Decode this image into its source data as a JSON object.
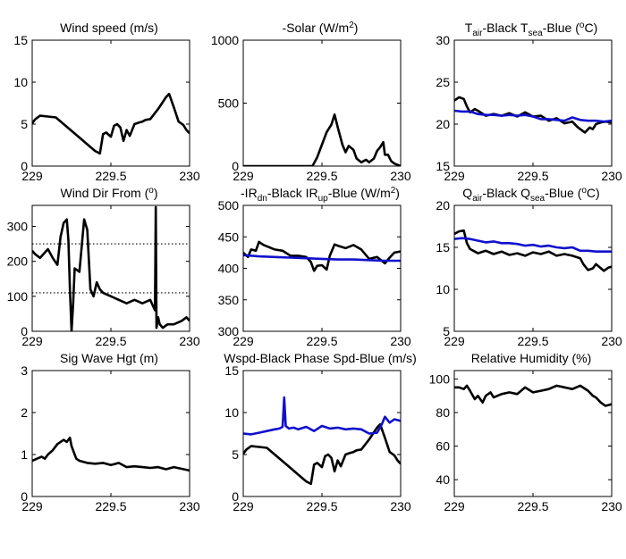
{
  "colors": {
    "black_series": "#000000",
    "blue_series": "#1010cc"
  },
  "chart_data": [
    {
      "type": "line",
      "title": "Wind speed (m/s)",
      "xlim": [
        229,
        230
      ],
      "ylim": [
        0,
        15
      ],
      "xticks": [
        229,
        229.5,
        230
      ],
      "yticks": [
        0,
        5,
        10,
        15
      ],
      "xtick_labels": [
        "229",
        "229.5",
        "230"
      ],
      "ytick_labels": [
        "0",
        "5",
        "10",
        "15"
      ],
      "series": [
        {
          "color": "black",
          "x": [
            229,
            229.02,
            229.05,
            229.1,
            229.15,
            229.2,
            229.25,
            229.3,
            229.35,
            229.4,
            229.43,
            229.45,
            229.47,
            229.5,
            229.52,
            229.54,
            229.56,
            229.58,
            229.6,
            229.62,
            229.65,
            229.68,
            229.7,
            229.72,
            229.75,
            229.8,
            229.85,
            229.87,
            229.9,
            229.93,
            229.96,
            229.98,
            230
          ],
          "y": [
            5.1,
            5.6,
            6.0,
            5.9,
            5.8,
            5.0,
            4.2,
            3.4,
            2.6,
            1.8,
            1.5,
            3.8,
            4.0,
            3.5,
            4.8,
            5.0,
            4.6,
            3.0,
            4.3,
            3.6,
            5.0,
            5.2,
            5.3,
            5.5,
            5.6,
            6.8,
            8.2,
            8.6,
            7.0,
            5.3,
            4.9,
            4.3,
            3.9
          ]
        }
      ]
    },
    {
      "type": "line",
      "title": "-Solar (W/m2)",
      "xlim": [
        229,
        230
      ],
      "ylim": [
        0,
        1000
      ],
      "xticks": [
        229,
        229.5,
        230
      ],
      "yticks": [
        0,
        500,
        1000
      ],
      "xtick_labels": [
        "229",
        "229.5",
        "230"
      ],
      "ytick_labels": [
        "0",
        "500",
        "1000"
      ],
      "series": [
        {
          "color": "black",
          "x": [
            229,
            229.44,
            229.47,
            229.5,
            229.53,
            229.56,
            229.58,
            229.6,
            229.63,
            229.65,
            229.67,
            229.7,
            229.72,
            229.75,
            229.78,
            229.8,
            229.83,
            229.85,
            229.87,
            229.89,
            229.9,
            229.92,
            229.94,
            229.96,
            229.98,
            230
          ],
          "y": [
            0,
            0,
            70,
            170,
            270,
            330,
            410,
            310,
            170,
            110,
            160,
            130,
            60,
            30,
            50,
            30,
            60,
            120,
            150,
            190,
            90,
            90,
            40,
            20,
            10,
            0
          ]
        }
      ]
    },
    {
      "type": "line",
      "title": "Tair-Black  Tsea-Blue (oC)",
      "xlim": [
        229,
        230
      ],
      "ylim": [
        15,
        30
      ],
      "xticks": [
        229,
        229.5,
        230
      ],
      "yticks": [
        15,
        20,
        25,
        30
      ],
      "xtick_labels": [
        "229",
        "229.5",
        "230"
      ],
      "ytick_labels": [
        "15",
        "20",
        "25",
        "30"
      ],
      "series": [
        {
          "color": "black",
          "x": [
            229,
            229.03,
            229.06,
            229.08,
            229.1,
            229.13,
            229.15,
            229.2,
            229.25,
            229.3,
            229.35,
            229.4,
            229.45,
            229.5,
            229.55,
            229.6,
            229.65,
            229.7,
            229.75,
            229.78,
            229.8,
            229.83,
            229.86,
            229.88,
            229.9,
            229.93,
            229.96,
            230
          ],
          "y": [
            22.8,
            23.2,
            23.0,
            22.1,
            21.4,
            21.8,
            21.6,
            21.0,
            21.2,
            21.0,
            21.3,
            20.9,
            21.4,
            20.9,
            21.0,
            20.4,
            20.7,
            20.1,
            20.3,
            19.7,
            19.4,
            19.0,
            19.6,
            19.4,
            20.0,
            20.2,
            20.3,
            20.2
          ]
        },
        {
          "color": "blue",
          "x": [
            229,
            229.05,
            229.1,
            229.15,
            229.2,
            229.25,
            229.3,
            229.35,
            229.4,
            229.45,
            229.5,
            229.55,
            229.6,
            229.65,
            229.7,
            229.75,
            229.8,
            229.85,
            229.9,
            229.95,
            230
          ],
          "y": [
            21.6,
            21.5,
            21.5,
            21.2,
            21.1,
            21.1,
            21.0,
            21.1,
            21.0,
            21.1,
            20.9,
            20.6,
            20.6,
            20.5,
            20.4,
            20.8,
            20.5,
            20.4,
            20.4,
            20.3,
            20.4
          ]
        }
      ]
    },
    {
      "type": "line",
      "title": "Wind Dir From (o)",
      "xlim": [
        229,
        230
      ],
      "ylim": [
        0,
        360
      ],
      "xticks": [
        229,
        229.5,
        230
      ],
      "yticks": [
        0,
        100,
        200,
        300
      ],
      "xtick_labels": [
        "229",
        "229.5",
        "230"
      ],
      "ytick_labels": [
        "0",
        "100",
        "200",
        "300"
      ],
      "reference_lines": [
        250,
        110
      ],
      "series": [
        {
          "color": "black",
          "x": [
            229,
            229.02,
            229.05,
            229.08,
            229.1,
            229.13,
            229.16,
            229.18,
            229.2,
            229.22,
            229.23,
            229.24,
            229.25,
            229.26,
            229.27,
            229.3,
            229.33,
            229.35,
            229.37,
            229.39,
            229.41,
            229.43,
            229.45,
            229.5,
            229.55,
            229.6,
            229.65,
            229.7,
            229.75,
            229.77,
            229.78,
            229.785,
            229.79,
            229.8,
            229.81,
            229.83,
            229.86,
            229.9,
            229.95,
            229.98,
            230
          ],
          "y": [
            230,
            220,
            210,
            225,
            235,
            210,
            190,
            270,
            310,
            320,
            260,
            120,
            0,
            80,
            180,
            170,
            320,
            290,
            120,
            100,
            140,
            120,
            110,
            100,
            90,
            80,
            90,
            80,
            90,
            70,
            60,
            355,
            10,
            40,
            20,
            10,
            20,
            20,
            30,
            40,
            30
          ]
        }
      ]
    },
    {
      "type": "line",
      "title": "-IRdn-Black  IRup-Blue (W/m2)",
      "xlim": [
        229,
        230
      ],
      "ylim": [
        300,
        500
      ],
      "xticks": [
        229,
        229.5,
        230
      ],
      "yticks": [
        300,
        350,
        400,
        450,
        500
      ],
      "xtick_labels": [
        "229",
        "229.5",
        "230"
      ],
      "ytick_labels": [
        "300",
        "350",
        "400",
        "450",
        "500"
      ],
      "series": [
        {
          "color": "black",
          "x": [
            229,
            229.03,
            229.05,
            229.08,
            229.1,
            229.13,
            229.15,
            229.2,
            229.25,
            229.3,
            229.35,
            229.4,
            229.43,
            229.45,
            229.47,
            229.5,
            229.53,
            229.55,
            229.58,
            229.6,
            229.65,
            229.7,
            229.75,
            229.8,
            229.85,
            229.9,
            229.93,
            229.96,
            230
          ],
          "y": [
            425,
            418,
            430,
            428,
            442,
            437,
            435,
            430,
            428,
            420,
            420,
            418,
            410,
            396,
            404,
            405,
            398,
            420,
            438,
            436,
            432,
            437,
            430,
            415,
            418,
            408,
            417,
            425,
            427
          ]
        },
        {
          "color": "blue",
          "x": [
            229,
            229.1,
            229.2,
            229.3,
            229.4,
            229.5,
            229.6,
            229.7,
            229.8,
            229.9,
            230
          ],
          "y": [
            421,
            419,
            418,
            417,
            416,
            415,
            414,
            414,
            413,
            412,
            412
          ]
        }
      ]
    },
    {
      "type": "line",
      "title": "Qair-Black  Qsea-Blue (oC)",
      "xlim": [
        229,
        230
      ],
      "ylim": [
        5,
        20
      ],
      "xticks": [
        229,
        229.5,
        230
      ],
      "yticks": [
        5,
        10,
        15,
        20
      ],
      "xtick_labels": [
        "229",
        "229.5",
        "230"
      ],
      "ytick_labels": [
        "5",
        "10",
        "15",
        "20"
      ],
      "series": [
        {
          "color": "black",
          "x": [
            229,
            229.03,
            229.06,
            229.08,
            229.1,
            229.13,
            229.15,
            229.2,
            229.25,
            229.3,
            229.35,
            229.4,
            229.45,
            229.5,
            229.55,
            229.6,
            229.65,
            229.7,
            229.75,
            229.8,
            229.82,
            229.85,
            229.88,
            229.9,
            229.95,
            229.98,
            230
          ],
          "y": [
            16.6,
            16.9,
            17.0,
            15.5,
            14.8,
            14.5,
            14.3,
            14.6,
            14.2,
            14.5,
            14.1,
            14.3,
            14.0,
            14.4,
            14.2,
            14.5,
            14.0,
            14.2,
            14.0,
            13.7,
            13.0,
            12.3,
            12.5,
            13.0,
            12.2,
            12.6,
            12.7
          ]
        },
        {
          "color": "blue",
          "x": [
            229,
            229.05,
            229.1,
            229.15,
            229.2,
            229.25,
            229.3,
            229.35,
            229.4,
            229.45,
            229.5,
            229.55,
            229.6,
            229.65,
            229.7,
            229.75,
            229.8,
            229.85,
            229.9,
            229.95,
            230
          ],
          "y": [
            16.0,
            16.1,
            16.0,
            15.8,
            15.6,
            15.7,
            15.5,
            15.5,
            15.4,
            15.2,
            15.3,
            15.1,
            15.2,
            15.0,
            14.9,
            15.0,
            14.6,
            14.6,
            14.5,
            14.5,
            14.5
          ]
        }
      ]
    },
    {
      "type": "line",
      "title": "Sig Wave Hgt (m)",
      "xlim": [
        229,
        230
      ],
      "ylim": [
        0,
        3
      ],
      "xticks": [
        229,
        229.5,
        230
      ],
      "yticks": [
        0,
        1,
        2,
        3
      ],
      "xtick_labels": [
        "229",
        "229.5",
        "230"
      ],
      "ytick_labels": [
        "0",
        "1",
        "2",
        "3"
      ],
      "series": [
        {
          "color": "black",
          "x": [
            229,
            229.03,
            229.06,
            229.08,
            229.1,
            229.13,
            229.16,
            229.18,
            229.2,
            229.22,
            229.24,
            229.25,
            229.27,
            229.28,
            229.3,
            229.35,
            229.4,
            229.45,
            229.5,
            229.55,
            229.6,
            229.65,
            229.7,
            229.75,
            229.8,
            229.85,
            229.9,
            229.95,
            230
          ],
          "y": [
            0.85,
            0.9,
            0.95,
            0.9,
            1.0,
            1.1,
            1.25,
            1.3,
            1.35,
            1.3,
            1.4,
            1.2,
            1.0,
            0.9,
            0.85,
            0.8,
            0.78,
            0.8,
            0.75,
            0.8,
            0.7,
            0.72,
            0.7,
            0.68,
            0.7,
            0.65,
            0.7,
            0.66,
            0.62
          ]
        }
      ]
    },
    {
      "type": "line",
      "title": "Wspd-Black  Phase Spd-Blue (m/s)",
      "xlim": [
        229,
        230
      ],
      "ylim": [
        0,
        15
      ],
      "xticks": [
        229,
        229.5,
        230
      ],
      "yticks": [
        0,
        5,
        10,
        15
      ],
      "xtick_labels": [
        "229",
        "229.5",
        "230"
      ],
      "ytick_labels": [
        "0",
        "5",
        "10",
        "15"
      ],
      "series": [
        {
          "color": "black",
          "x": [
            229,
            229.02,
            229.05,
            229.1,
            229.15,
            229.2,
            229.25,
            229.3,
            229.35,
            229.4,
            229.43,
            229.45,
            229.47,
            229.5,
            229.52,
            229.54,
            229.56,
            229.58,
            229.6,
            229.62,
            229.65,
            229.68,
            229.7,
            229.72,
            229.75,
            229.8,
            229.85,
            229.87,
            229.9,
            229.93,
            229.96,
            229.98,
            230
          ],
          "y": [
            5.1,
            5.6,
            6.0,
            5.9,
            5.8,
            5.0,
            4.2,
            3.4,
            2.6,
            1.8,
            1.5,
            3.8,
            4.0,
            3.5,
            4.8,
            5.0,
            4.6,
            3.0,
            4.3,
            3.6,
            5.0,
            5.2,
            5.3,
            5.5,
            5.6,
            6.8,
            8.2,
            8.6,
            7.0,
            5.3,
            4.9,
            4.3,
            3.9
          ]
        },
        {
          "color": "blue",
          "x": [
            229,
            229.05,
            229.1,
            229.15,
            229.2,
            229.23,
            229.25,
            229.26,
            229.27,
            229.29,
            229.32,
            229.35,
            229.4,
            229.45,
            229.5,
            229.55,
            229.6,
            229.65,
            229.7,
            229.75,
            229.8,
            229.85,
            229.88,
            229.9,
            229.93,
            229.96,
            230
          ],
          "y": [
            7.5,
            7.4,
            7.6,
            7.8,
            8.0,
            8.1,
            8.3,
            11.8,
            8.4,
            8.1,
            8.2,
            8.0,
            8.3,
            7.8,
            8.4,
            8.1,
            8.2,
            8.0,
            8.1,
            8.0,
            7.5,
            7.6,
            8.6,
            9.5,
            8.8,
            9.2,
            9.0
          ]
        }
      ]
    },
    {
      "type": "line",
      "title": "Relative Humidity (%)",
      "xlim": [
        229,
        230
      ],
      "ylim": [
        30,
        105
      ],
      "xticks": [
        229,
        229.5,
        230
      ],
      "yticks": [
        40,
        60,
        80,
        100
      ],
      "xtick_labels": [
        "229",
        "229.5",
        "230"
      ],
      "ytick_labels": [
        "40",
        "60",
        "80",
        "100"
      ],
      "series": [
        {
          "color": "black",
          "x": [
            229,
            229.03,
            229.06,
            229.08,
            229.1,
            229.13,
            229.15,
            229.18,
            229.2,
            229.23,
            229.25,
            229.3,
            229.35,
            229.4,
            229.45,
            229.5,
            229.55,
            229.6,
            229.65,
            229.7,
            229.75,
            229.8,
            229.85,
            229.88,
            229.9,
            229.93,
            229.96,
            230
          ],
          "y": [
            95,
            95,
            94,
            96,
            93,
            88,
            90,
            86,
            90,
            92,
            89,
            91,
            92,
            91,
            95,
            92,
            93,
            94,
            96,
            95,
            94,
            96,
            93,
            90,
            89,
            86,
            84,
            85
          ]
        }
      ]
    }
  ]
}
